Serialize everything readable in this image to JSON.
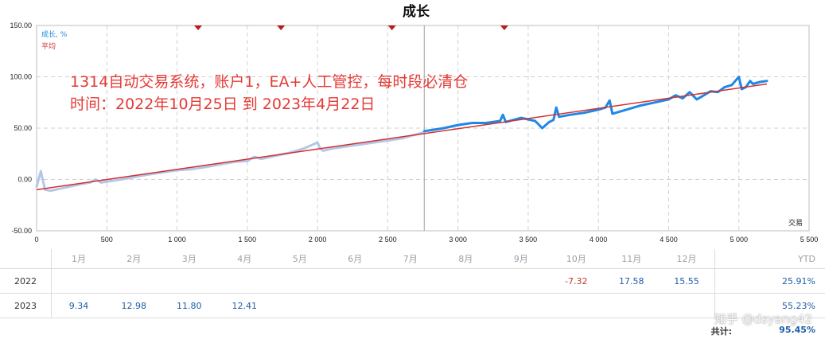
{
  "chart_data": {
    "type": "line",
    "title": "成长",
    "legend": {
      "growth": "成长, %",
      "average": "平均",
      "placement": "top-left"
    },
    "annotation": [
      "1314自动交易系统，账户1，EA+人工管控，每时段必清仓",
      "时间：2022年10月25日 到 2023年4月22日"
    ],
    "xlabel": "交易",
    "ylabel": "",
    "xlim": [
      0,
      5500
    ],
    "ylim": [
      -50,
      150
    ],
    "grid": true,
    "x_ticks": [
      0,
      500,
      1000,
      1500,
      2000,
      2500,
      3000,
      3500,
      4000,
      4500,
      5000,
      5500
    ],
    "x_tick_labels": [
      "0",
      "500",
      "1 000",
      "1 500",
      "2 000",
      "2 500",
      "3 000",
      "3 500",
      "4 000",
      "4 500",
      "5 000",
      "5 500"
    ],
    "y_ticks": [
      -50,
      0,
      50,
      100,
      150
    ],
    "y_tick_labels": [
      "-50.00",
      "0.00",
      "50.00",
      "100.00",
      "150.00"
    ],
    "vertical_marker_x": 2760,
    "marker_positions_x": [
      1150,
      1740,
      2530,
      3330
    ],
    "series": [
      {
        "name": "成长, %",
        "segment": "before",
        "x": [
          0,
          30,
          60,
          100,
          200,
          300,
          380,
          420,
          460,
          600,
          800,
          1000,
          1100,
          1200,
          1400,
          1500,
          1550,
          1600,
          1800,
          1900,
          2000,
          2020,
          2040,
          2100,
          2200,
          2400,
          2600,
          2760
        ],
        "y": [
          -7,
          8,
          -10,
          -11,
          -8,
          -5,
          -3,
          0,
          -3,
          0,
          5,
          9,
          10,
          12,
          17,
          18,
          22,
          20,
          26,
          30,
          36,
          30,
          28,
          30,
          32,
          36,
          40,
          46
        ]
      },
      {
        "name": "成长, %",
        "segment": "after",
        "x": [
          2760,
          2900,
          3000,
          3100,
          3200,
          3300,
          3320,
          3340,
          3450,
          3550,
          3600,
          3650,
          3680,
          3700,
          3720,
          3800,
          3900,
          4000,
          4050,
          4080,
          4100,
          4200,
          4300,
          4400,
          4500,
          4550,
          4600,
          4650,
          4700,
          4800,
          4850,
          4900,
          4950,
          5000,
          5020,
          5050,
          5080,
          5100,
          5150,
          5200
        ],
        "y": [
          47,
          50,
          53,
          55,
          55,
          57,
          63,
          56,
          60,
          57,
          50,
          56,
          58,
          70,
          61,
          63,
          65,
          68,
          70,
          77,
          64,
          68,
          72,
          75,
          78,
          82,
          79,
          85,
          78,
          86,
          85,
          90,
          92,
          100,
          88,
          90,
          96,
          93,
          95,
          96
        ]
      }
    ],
    "trend": {
      "name": "平均",
      "x": [
        0,
        5200
      ],
      "y": [
        -10,
        93
      ]
    }
  },
  "table": {
    "months": [
      "1月",
      "2月",
      "3月",
      "4月",
      "5月",
      "6月",
      "7月",
      "8月",
      "9月",
      "10月",
      "11月",
      "12月"
    ],
    "ytd_label": "YTD",
    "rows": [
      {
        "year": "2022",
        "values": [
          "",
          "",
          "",
          "",
          "",
          "",
          "",
          "",
          "",
          "-7.32",
          "17.58",
          "15.55"
        ],
        "ytd": "25.91%"
      },
      {
        "year": "2023",
        "values": [
          "9.34",
          "12.98",
          "11.80",
          "12.41",
          "",
          "",
          "",
          "",
          "",
          "",
          "",
          ""
        ],
        "ytd": "55.23%"
      }
    ],
    "total_label": "共计:",
    "total_value": "95.45%"
  },
  "watermark": "知乎 @dsyang42",
  "colors": {
    "growth_before": "#b4c6e7",
    "growth_after": "#1e88e5",
    "average": "#d32f2f",
    "annotation": "#e53935",
    "marker": "#b71c1c",
    "grid": "#d0d0d0",
    "positive": "#1f5fa8",
    "negative": "#c0392b"
  }
}
